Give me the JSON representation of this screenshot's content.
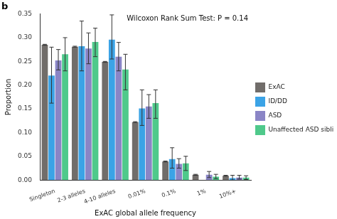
{
  "chart_data": {
    "type": "bar",
    "title": "b",
    "annotations": [
      "Wilcoxon Rank Sum Test: P = 0.14"
    ],
    "x_label": "ExAC global allele frequency",
    "y_label": "Proportion",
    "categories": [
      "Singleton",
      "2-3 alleles",
      "4-10 alleles",
      "0.01%",
      "0.1%",
      "1%",
      "10%+"
    ],
    "series": [
      {
        "name": "ExAC",
        "color": "#716d6a",
        "values": [
          0.285,
          0.281,
          0.249,
          0.122,
          0.039,
          0.011,
          0.009
        ],
        "error_low": [
          0.284,
          0.28,
          0.248,
          0.121,
          0.038,
          0.01,
          0.008
        ],
        "error_high": [
          0.286,
          0.282,
          0.25,
          0.123,
          0.04,
          0.012,
          0.01
        ]
      },
      {
        "name": "ID/DD",
        "color": "#3ba3e6",
        "values": [
          0.22,
          0.282,
          0.296,
          0.151,
          0.044,
          0,
          0.004
        ],
        "error_low": [
          0.162,
          0.23,
          0.255,
          0.115,
          0.025,
          null,
          0
        ],
        "error_high": [
          0.28,
          0.335,
          0.348,
          0.19,
          0.068,
          null,
          0.01
        ]
      },
      {
        "name": "ASD",
        "color": "#8a85c6",
        "values": [
          0.252,
          0.277,
          0.26,
          0.155,
          0.034,
          0.011,
          0.005
        ],
        "error_low": [
          0.232,
          0.245,
          0.23,
          0.13,
          0.025,
          0.005,
          0.002
        ],
        "error_high": [
          0.275,
          0.31,
          0.29,
          0.18,
          0.045,
          0.018,
          0.01
        ]
      },
      {
        "name": "Unaffected ASD siblings",
        "color": "#4fc98b",
        "values": [
          0.265,
          0.291,
          0.233,
          0.162,
          0.035,
          0.007,
          0.005
        ],
        "error_low": [
          0.23,
          0.26,
          0.19,
          0.13,
          0.02,
          0.003,
          0.001
        ],
        "error_high": [
          0.3,
          0.32,
          0.265,
          0.19,
          0.05,
          0.012,
          0.009
        ]
      }
    ],
    "ylim": [
      0,
      0.35
    ],
    "yticks": [
      {
        "value": 0,
        "label": "0.00"
      },
      {
        "value": 0.05,
        "label": "0.05"
      },
      {
        "value": 0.1,
        "label": "0.10"
      },
      {
        "value": 0.15,
        "label": "0.15"
      },
      {
        "value": 0.2,
        "label": "0.20"
      },
      {
        "value": 0.25,
        "label": "0.25"
      },
      {
        "value": 0.3,
        "label": "0.30"
      },
      {
        "value": 0.35,
        "label": "0.35"
      }
    ],
    "grid": false,
    "legend": "right"
  }
}
